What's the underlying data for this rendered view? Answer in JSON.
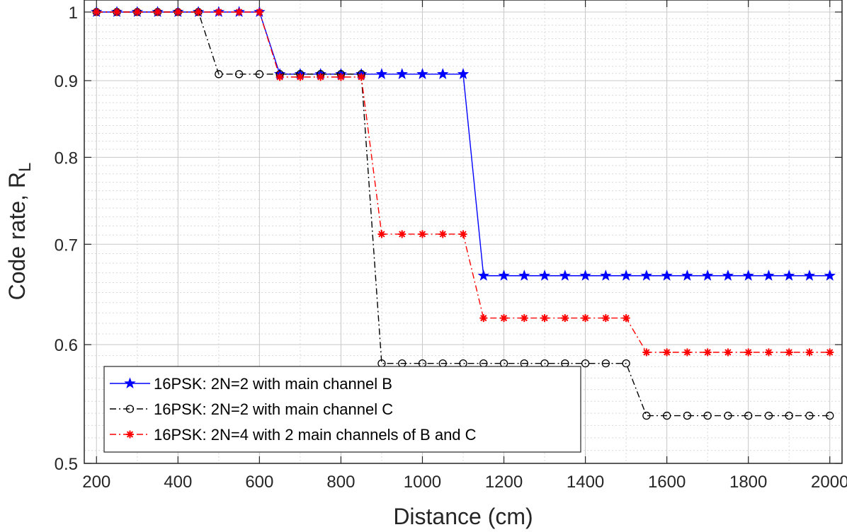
{
  "chart_data": {
    "type": "line",
    "title": "",
    "xlabel": "Distance (cm)",
    "ylabel": {
      "main": "Code rate, R",
      "subscript": "L"
    },
    "xlim": [
      170,
      2030
    ],
    "ylim": [
      0.5,
      1.0
    ],
    "y_scale": "log",
    "x_ticks": [
      200,
      400,
      600,
      800,
      1000,
      1200,
      1400,
      1600,
      1800,
      2000
    ],
    "y_ticks": [
      0.5,
      0.6,
      0.7,
      0.8,
      0.9,
      1
    ],
    "y_tick_labels": [
      "0.5",
      "0.6",
      "0.7",
      "0.8",
      "0.9",
      "1"
    ],
    "grid": true,
    "minor_grid": true,
    "legend_position": "bottom-left",
    "x": [
      200,
      250,
      300,
      350,
      400,
      450,
      500,
      550,
      600,
      650,
      700,
      750,
      800,
      850,
      900,
      950,
      1000,
      1050,
      1100,
      1150,
      1200,
      1250,
      1300,
      1350,
      1400,
      1450,
      1500,
      1550,
      1600,
      1650,
      1700,
      1750,
      1800,
      1850,
      1900,
      1950,
      2000
    ],
    "series": [
      {
        "name": "16PSK: 2N=2 with main channel B",
        "color": "#0000ff",
        "line": "solid",
        "marker": "star",
        "values": [
          1,
          1,
          1,
          1,
          1,
          1,
          1,
          1,
          1,
          0.909,
          0.909,
          0.909,
          0.909,
          0.909,
          0.909,
          0.909,
          0.909,
          0.909,
          0.909,
          0.667,
          0.667,
          0.667,
          0.667,
          0.667,
          0.667,
          0.667,
          0.667,
          0.667,
          0.667,
          0.667,
          0.667,
          0.667,
          0.667,
          0.667,
          0.667,
          0.667,
          0.667
        ]
      },
      {
        "name": "16PSK: 2N=2 with main channel C",
        "color": "#000000",
        "line": "dash-dot",
        "marker": "circle",
        "values": [
          1,
          1,
          1,
          1,
          1,
          1,
          0.909,
          0.909,
          0.909,
          0.909,
          0.909,
          0.909,
          0.909,
          0.909,
          0.583,
          0.583,
          0.583,
          0.583,
          0.583,
          0.583,
          0.583,
          0.583,
          0.583,
          0.583,
          0.583,
          0.583,
          0.583,
          0.538,
          0.538,
          0.538,
          0.538,
          0.538,
          0.538,
          0.538,
          0.538,
          0.538,
          0.538
        ]
      },
      {
        "name": "16PSK: 2N=4 with 2 main channels of B and C",
        "color": "#ff0000",
        "line": "dash-dot",
        "marker": "asterisk",
        "values": [
          1,
          1,
          1,
          1,
          1,
          1,
          1,
          1,
          1,
          0.905,
          0.905,
          0.905,
          0.905,
          0.905,
          0.711,
          0.711,
          0.711,
          0.711,
          0.711,
          0.625,
          0.625,
          0.625,
          0.625,
          0.625,
          0.625,
          0.625,
          0.625,
          0.593,
          0.593,
          0.593,
          0.593,
          0.593,
          0.593,
          0.593,
          0.593,
          0.593,
          0.593
        ]
      }
    ]
  }
}
